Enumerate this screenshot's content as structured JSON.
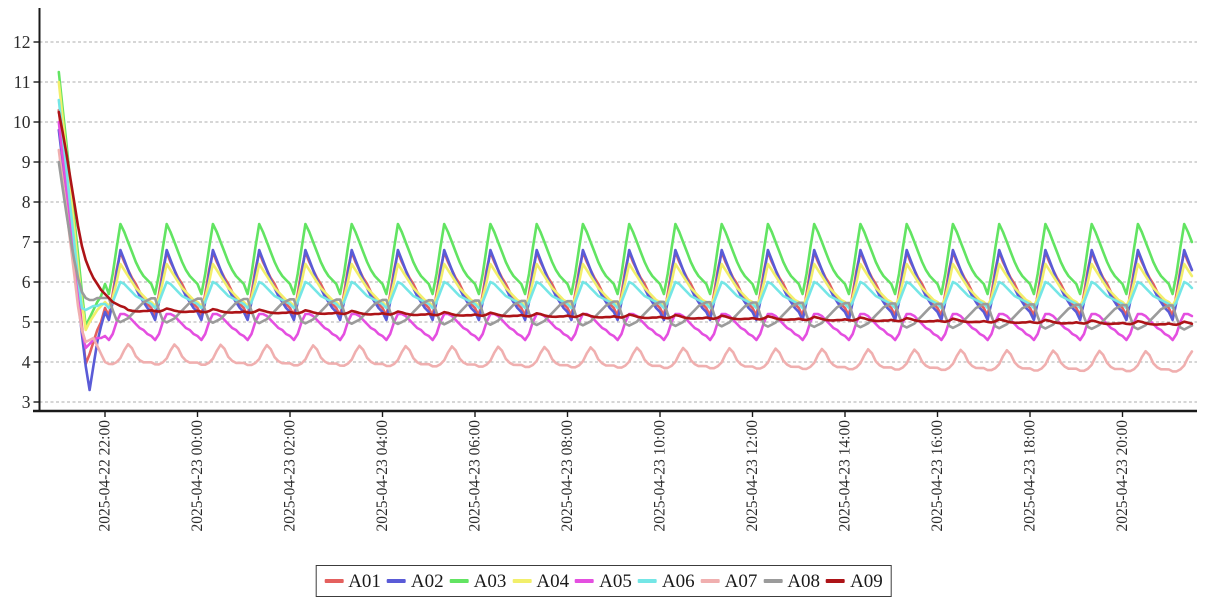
{
  "chart_data": {
    "type": "line",
    "title": "",
    "xlabel": "",
    "ylabel": "",
    "description": "Nine series (A01-A09) of 5-minute samples. All start high at 2025-04-22 21:00, drop steeply in the first ~40 minutes, then settle into repeating hourly sawtooth/step cycles until 2025-04-23 21:30.",
    "x_axis": {
      "start_time": "2025-04-22 21:00",
      "end_time": "2025-04-23 21:30",
      "total_minutes": 1470,
      "step_minutes": 5,
      "tick_minutes": [
        60,
        180,
        300,
        420,
        540,
        660,
        780,
        900,
        1020,
        1140,
        1260,
        1380
      ],
      "tick_labels": [
        "2025-04-22 22:00",
        "2025-04-23 00:00",
        "2025-04-23 02:00",
        "2025-04-23 04:00",
        "2025-04-23 06:00",
        "2025-04-23 08:00",
        "2025-04-23 10:00",
        "2025-04-23 12:00",
        "2025-04-23 14:00",
        "2025-04-23 16:00",
        "2025-04-23 18:00",
        "2025-04-23 20:00"
      ]
    },
    "y_axis": {
      "ticks": [
        3,
        4,
        5,
        6,
        7,
        8,
        9,
        10,
        11,
        12
      ],
      "min": 2.75,
      "max": 13.0,
      "grid": "dashed-horizontal"
    },
    "legend": {
      "position": "bottom-center",
      "bordered": true
    },
    "series": [
      {
        "name": "A01",
        "color": "#e4605e",
        "initial_values": [
          10.3,
          9.4,
          8.5,
          7.6,
          6.7,
          5.8,
          4.9,
          3.95,
          4.2,
          4.5,
          4.8,
          5.0
        ],
        "cycle_start_min": 60,
        "cycle_values": [
          5.35,
          5.15,
          5.7,
          6.3,
          6.75,
          6.5,
          6.3,
          6.1,
          5.95,
          5.75,
          5.6,
          5.45
        ],
        "trend_per_hour": 0
      },
      {
        "name": "A02",
        "color": "#5a5bd7",
        "initial_values": [
          9.8,
          9.0,
          8.15,
          7.3,
          6.45,
          5.6,
          4.7,
          3.9,
          3.3,
          3.9,
          4.5,
          4.9
        ],
        "cycle_start_min": 60,
        "cycle_values": [
          5.25,
          5.05,
          5.5,
          6.2,
          6.8,
          6.55,
          6.3,
          6.05,
          5.85,
          5.65,
          5.5,
          5.35
        ],
        "trend_per_hour": 0
      },
      {
        "name": "A03",
        "color": "#62e462",
        "initial_values": [
          11.25,
          10.35,
          9.45,
          8.5,
          7.6,
          6.7,
          5.75,
          4.9,
          5.1,
          5.3,
          5.5,
          5.65
        ],
        "cycle_start_min": 60,
        "cycle_values": [
          5.95,
          5.7,
          6.2,
          6.85,
          7.45,
          7.25,
          7.0,
          6.75,
          6.5,
          6.3,
          6.15,
          6.05
        ],
        "trend_per_hour": 0
      },
      {
        "name": "A04",
        "color": "#f2ef6b",
        "initial_values": [
          11.0,
          10.1,
          9.2,
          8.25,
          7.35,
          6.4,
          5.5,
          4.8,
          5.0,
          5.15,
          5.3,
          5.4
        ],
        "cycle_start_min": 60,
        "cycle_values": [
          5.5,
          5.4,
          5.6,
          6.0,
          6.45,
          6.3,
          6.15,
          6.0,
          5.85,
          5.75,
          5.65,
          5.55
        ],
        "trend_per_hour": 0
      },
      {
        "name": "A05",
        "color": "#e44fe0",
        "initial_values": [
          10.0,
          9.15,
          8.3,
          7.4,
          6.5,
          5.6,
          4.8,
          4.35,
          4.45,
          4.55,
          4.6,
          4.6
        ],
        "cycle_start_min": 60,
        "cycle_values": [
          4.65,
          4.55,
          4.7,
          5.0,
          5.2,
          5.2,
          5.15,
          5.05,
          4.95,
          4.85,
          4.8,
          4.7
        ],
        "trend_per_hour": 0
      },
      {
        "name": "A06",
        "color": "#74e6e6",
        "initial_values": [
          10.55,
          9.7,
          8.8,
          7.9,
          7.0,
          6.1,
          5.35,
          5.3,
          5.35,
          5.4,
          5.4,
          5.45
        ],
        "cycle_start_min": 60,
        "cycle_values": [
          5.45,
          5.35,
          5.5,
          5.75,
          6.0,
          5.95,
          5.85,
          5.75,
          5.65,
          5.6,
          5.55,
          5.5
        ],
        "trend_per_hour": 0
      },
      {
        "name": "A07",
        "color": "#f0afaf",
        "initial_values": [
          9.3,
          8.55,
          7.8,
          7.0,
          6.2,
          5.4,
          4.8,
          4.5,
          4.55,
          4.6,
          4.4,
          4.2
        ],
        "cycle_start_min": 60,
        "cycle_values": [
          4.0,
          3.95,
          3.95,
          4.0,
          4.1,
          4.3,
          4.45,
          4.35,
          4.15,
          4.05,
          4.0,
          4.0
        ],
        "trend_per_hour": -0.008
      },
      {
        "name": "A08",
        "color": "#9b9b9b",
        "initial_values": [
          9.0,
          8.35,
          7.7,
          7.1,
          6.55,
          6.1,
          5.75,
          5.6,
          5.55,
          5.55,
          5.6,
          5.6
        ],
        "cycle_start_min": 60,
        "cycle_values": [
          5.6,
          5.6,
          5.3,
          5.05,
          5.0,
          5.05,
          5.1,
          5.2,
          5.3,
          5.4,
          5.5,
          5.55
        ],
        "trend_per_hour": -0.008
      },
      {
        "name": "A09",
        "color": "#ad1317",
        "initial_values": [
          10.25,
          9.75,
          9.2,
          8.6,
          8.0,
          7.4,
          6.9,
          6.55,
          6.3,
          6.1,
          5.95,
          5.8,
          5.7,
          5.6,
          5.5,
          5.45,
          5.4,
          5.37
        ],
        "cycle_start_min": 90,
        "cycle_values": [
          5.3,
          5.28,
          5.27,
          5.3,
          5.35,
          5.33,
          5.3,
          5.28,
          5.27,
          5.27,
          5.28,
          5.28
        ],
        "trend_per_hour": -0.015
      }
    ]
  },
  "colors": {
    "background": "#ffffff",
    "grid": "#adadad",
    "axis": "#1a1a1a",
    "tick_label": "#2b2b2b",
    "legend_border": "#3c3c3c",
    "legend_text": "#1a1a1a"
  }
}
